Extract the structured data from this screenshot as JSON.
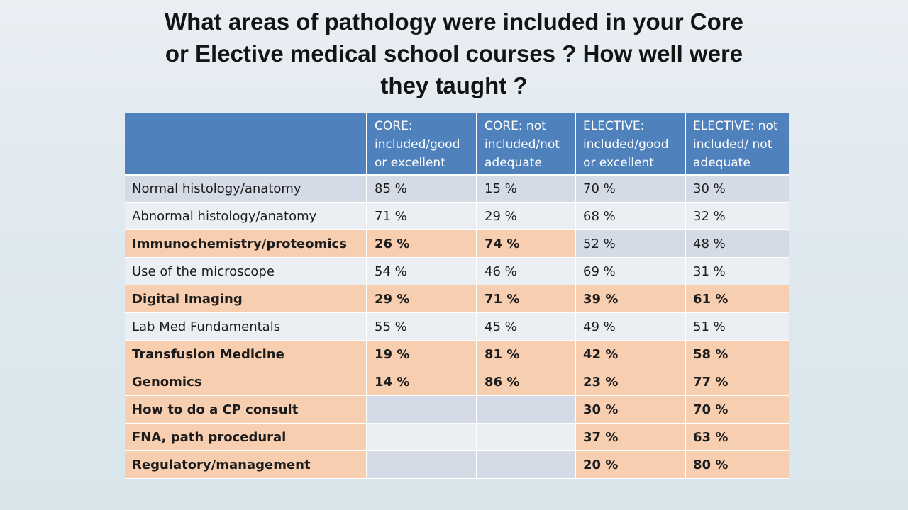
{
  "title": {
    "line1": "What areas of pathology were included in your Core",
    "line2": "or Elective medical school courses ? How well were",
    "line3": "they taught ?"
  },
  "table": {
    "headers": [
      "",
      "CORE: included/good or excellent",
      "CORE: not included/not adequate",
      "ELECTIVE: included/good or excellent",
      "ELECTIVE: not included/ not adequate"
    ],
    "rows": [
      {
        "area": "Normal histology/anatomy",
        "core_good": "85 %",
        "core_not": "15 %",
        "elective_good": "70 %",
        "elective_not": "30 %"
      },
      {
        "area": "Abnormal histology/anatomy",
        "core_good": "71 %",
        "core_not": "29 %",
        "elective_good": "68 %",
        "elective_not": "32 %"
      },
      {
        "area": "Immunochemistry/proteomics",
        "core_good": "26 %",
        "core_not": "74 %",
        "elective_good": "52 %",
        "elective_not": "48 %"
      },
      {
        "area": "Use of the microscope",
        "core_good": "54 %",
        "core_not": "46 %",
        "elective_good": "69 %",
        "elective_not": "31 %"
      },
      {
        "area": "Digital Imaging",
        "core_good": "29 %",
        "core_not": "71 %",
        "elective_good": "39 %",
        "elective_not": "61 %"
      },
      {
        "area": "Lab Med Fundamentals",
        "core_good": "55 %",
        "core_not": "45 %",
        "elective_good": "49 %",
        "elective_not": "51 %"
      },
      {
        "area": "Transfusion Medicine",
        "core_good": "19 %",
        "core_not": "81 %",
        "elective_good": "42 %",
        "elective_not": "58 %"
      },
      {
        "area": "Genomics",
        "core_good": "14 %",
        "core_not": "86 %",
        "elective_good": "23 %",
        "elective_not": "77 %"
      },
      {
        "area": "How to do a CP consult",
        "core_good": "",
        "core_not": "",
        "elective_good": "30 %",
        "elective_not": "70 %"
      },
      {
        "area": "FNA, path procedural",
        "core_good": "",
        "core_not": "",
        "elective_good": "37 %",
        "elective_not": "63 %"
      },
      {
        "area": "Regulatory/management",
        "core_good": "",
        "core_not": "",
        "elective_good": "20 %",
        "elective_not": "80 %"
      }
    ]
  },
  "colors": {
    "header_blue": "#4f81bd",
    "highlight_orange": "#f8ceb1",
    "row_gray": "#d5dbe6",
    "row_light": "#ebeef3"
  }
}
